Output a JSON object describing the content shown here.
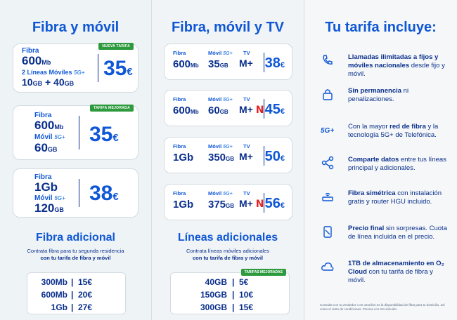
{
  "left": {
    "title": "Fibra y móvil",
    "cards": [
      {
        "tag": "NUEVA TARIFA",
        "fibra_label": "Fibra",
        "fibra_value": "600",
        "fibra_unit": "Mb",
        "lineas_label": "2 Líneas Móviles",
        "lineas_5g": "5G+",
        "data1": "10",
        "data1_unit": "GB",
        "plus": "+",
        "data2": "40",
        "data2_unit": "GB",
        "price": "35",
        "currency": "€"
      },
      {
        "tag": "TARIFA MEJORADA",
        "fibra_label": "Fibra",
        "fibra_value": "600",
        "fibra_unit": "Mb",
        "movil_label": "Móvil",
        "movil_5g": "5G+",
        "data": "60",
        "data_unit": "GB",
        "price": "35",
        "currency": "€"
      },
      {
        "fibra_label": "Fibra",
        "fibra_value": "1Gb",
        "movil_label": "Móvil",
        "movil_5g": "5G+",
        "data": "120",
        "data_unit": "GB",
        "price": "38",
        "currency": "€"
      }
    ],
    "extra": {
      "title": "Fibra adicional",
      "desc1": "Contrata fibra para tu segunda residencia",
      "desc2": "con tu tarifa de fibra y móvil",
      "rows": [
        {
          "a": "300Mb",
          "b": "15€"
        },
        {
          "a": "600Mb",
          "b": "20€"
        },
        {
          "a": "1Gb",
          "b": "27€"
        }
      ]
    }
  },
  "mid": {
    "title": "Fibra, móvil y TV",
    "cards": [
      {
        "fibra": "600",
        "fibra_unit": "Mb",
        "movil": "35",
        "movil_unit": "GB",
        "tv": "M+",
        "netflix": false,
        "price": "38",
        "currency": "€"
      },
      {
        "fibra": "600",
        "fibra_unit": "Mb",
        "movil": "60",
        "movil_unit": "GB",
        "tv": "M+",
        "netflix": true,
        "price": "45",
        "currency": "€"
      },
      {
        "fibra": "1Gb",
        "fibra_unit": "",
        "movil": "350",
        "movil_unit": "GB",
        "tv": "M+",
        "netflix": false,
        "price": "50",
        "currency": "€"
      },
      {
        "fibra": "1Gb",
        "fibra_unit": "",
        "movil": "375",
        "movil_unit": "GB",
        "tv": "M+",
        "netflix": true,
        "price": "56",
        "currency": "€"
      }
    ],
    "labels": {
      "fibra": "Fibra",
      "movil": "Móvil",
      "movil_5g": "5G+",
      "tv": "TV",
      "netflix": "N"
    },
    "extra": {
      "title": "Líneas adicionales",
      "desc1": "Contrata líneas móviles adicionales",
      "desc2": "con tu tarifa de fibra y móvil",
      "tag": "TARIFAS MEJORADAS",
      "rows": [
        {
          "a": "40GB",
          "b": "5€"
        },
        {
          "a": "150GB",
          "b": "10€"
        },
        {
          "a": "300GB",
          "b": "15€"
        }
      ]
    }
  },
  "right": {
    "title": "Tu tarifa incluye:",
    "features": [
      {
        "icon": "phone-call-icon",
        "bold": "Llamadas ilimitadas a fijos y móviles nacionales",
        "rest": " desde fijo y móvil."
      },
      {
        "icon": "lock-icon",
        "bold": "Sin permanencia",
        "rest": " ni penalizaciones."
      },
      {
        "icon": "5g-icon",
        "pre": "Con la mayor ",
        "bold": "red de fibra",
        "rest": " y la tecnología 5G+ de Telefónica."
      },
      {
        "icon": "share-icon",
        "bold": "Comparte datos",
        "rest": " entre tus líneas principal y adicionales."
      },
      {
        "icon": "router-icon",
        "bold": "Fibra simétrica",
        "rest": " con instalación gratis y router HGU incluido."
      },
      {
        "icon": "price-tag-icon",
        "bold": "Precio final",
        "rest": " sin sorpresas. Cuota de línea incluida en el precio."
      },
      {
        "icon": "cloud-icon",
        "bold": "1TB de almacenamiento en O₂ Cloud",
        "rest": " con tu tarifa de fibra y móvil."
      }
    ],
    "fine_print": "Consulta con tu vendedor o en o2online.es la disponibilidad de fibra para tu domicilio, así como el resto de condiciones. Precios con IVA incluido."
  }
}
